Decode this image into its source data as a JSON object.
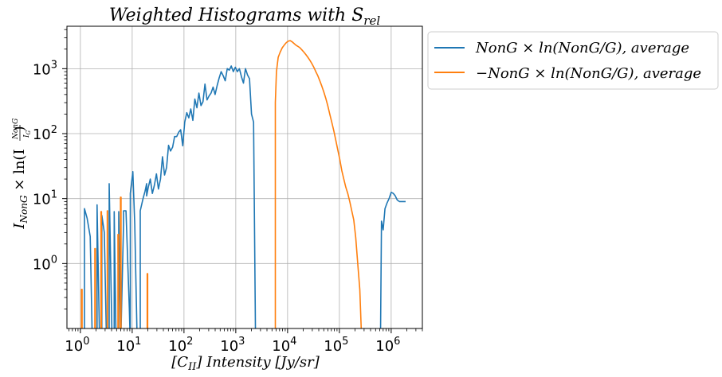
{
  "chart_data": {
    "type": "line",
    "title": "Weighted Histograms with S",
    "title_sub": "rel",
    "xlabel": "[C",
    "xlabel_sub": "II",
    "xlabel_rest": "] Intensity [Jy/sr]",
    "ylabel": "I",
    "ylabel_sub": "NonG",
    "ylabel_rest": " × ln(I",
    "ylabel_frac_num": "NonG",
    "ylabel_frac_den": "I",
    "ylabel_frac_den_sub": "G",
    "ylabel_close": ")",
    "x_scale": "log",
    "y_scale": "log",
    "xlim": [
      0.55,
      4000000
    ],
    "ylim": [
      0.1,
      4500
    ],
    "x_ticks": [
      1,
      10,
      100,
      1000,
      10000,
      100000,
      1000000
    ],
    "x_tick_labels": [
      "10^0",
      "10^1",
      "10^2",
      "10^3",
      "10^4",
      "10^5",
      "10^6"
    ],
    "y_ticks": [
      1,
      10,
      100,
      1000
    ],
    "y_tick_labels": [
      "10^0",
      "10^1",
      "10^2",
      "10^3"
    ],
    "grid": true,
    "legend_position": "outside-right-top",
    "series": [
      {
        "name": "NonG × ln(NonG/G), average",
        "color": "#1f77b4",
        "x": [
          1.2,
          1.2,
          1.35,
          1.55,
          1.7,
          1.7,
          2.1,
          2.1,
          2.35,
          2.35,
          2.6,
          2.6,
          2.9,
          3.2,
          3.2,
          3.6,
          3.6,
          4.1,
          4.1,
          4.5,
          4.5,
          4.9,
          4.9,
          5.5,
          5.5,
          6,
          6,
          6.8,
          6.8,
          7.6,
          8.8,
          9.2,
          9.2,
          10.3,
          11.2,
          12.5,
          13.6,
          14.3,
          14.3,
          16.2,
          17.7,
          19,
          19,
          20.5,
          22.4,
          24.5,
          26.8,
          29.4,
          32.1,
          35.2,
          38.5,
          42.1,
          46,
          50.4,
          55.1,
          60.3,
          66,
          72.2,
          79,
          86.4,
          94.5,
          103.4,
          113.2,
          123.8,
          135.5,
          148.2,
          162.2,
          177.5,
          194.2,
          212.5,
          232.5,
          254.4,
          278.3,
          304.5,
          333.2,
          364.6,
          398.9,
          436.4,
          477.5,
          522.5,
          571.7,
          625.5,
          684.4,
          748.9,
          819.4,
          896.6,
          981,
          1073,
          1174,
          1285,
          1406,
          1538,
          1683,
          1842,
          2015,
          2205,
          2413,
          2640,
          2888,
          3160,
          3458,
          3784,
          4140,
          4530,
          4957,
          5200,
          5200
        ],
        "y": [
          0.1,
          7,
          5,
          2.6,
          0.1,
          0.1,
          0.1,
          8,
          0.1,
          0.1,
          0.1,
          5.5,
          3,
          0.1,
          0.1,
          0.1,
          17,
          0.1,
          0.1,
          0.1,
          6.3,
          0.1,
          0.1,
          0.1,
          6.3,
          0.1,
          0.1,
          4,
          6.5,
          6.5,
          0.2,
          0.1,
          12,
          26,
          4,
          0.1,
          0.1,
          0.1,
          6.5,
          10,
          13,
          17,
          11,
          15,
          20,
          12,
          16,
          24,
          14,
          20,
          44,
          23,
          30,
          66,
          54,
          62,
          90,
          90,
          105,
          115,
          65,
          150,
          210,
          175,
          240,
          160,
          340,
          250,
          420,
          270,
          310,
          580,
          330,
          380,
          420,
          520,
          400,
          550,
          720,
          900,
          780,
          650,
          1000,
          950,
          1100,
          900,
          1050,
          900,
          1000,
          750,
          600,
          1000,
          800,
          700,
          200,
          150,
          0.1,
          0.1,
          0.1,
          0.1,
          0.1,
          0.1,
          0.1,
          0.1,
          0.1,
          0.1,
          0.1
        ],
        "x2": [
          620000,
          650000,
          700000,
          760000,
          830000,
          910000,
          1000000,
          1100000,
          1200000,
          1310000,
          1440000,
          1580000,
          1730000,
          1900000
        ],
        "y2": [
          0.1,
          4.5,
          3.3,
          7,
          8.5,
          10,
          12.5,
          12,
          11,
          9.5,
          9,
          9,
          9,
          9
        ]
      },
      {
        "name": "−NonG × ln(NonG/G), average",
        "color": "#ff7f0e",
        "x": [
          1.05,
          1.05,
          1.08,
          1.08,
          1.9,
          1.9,
          1.95,
          1.95,
          2.5,
          2.5,
          2.55,
          2.55,
          3.3,
          3.3,
          3.35,
          3.35,
          5.3,
          5.3,
          5.45,
          5.45,
          5.95,
          5.95,
          6.1,
          6.1,
          19.5,
          19.5,
          19.9,
          19.9,
          5800,
          5800,
          6100,
          6600,
          7200,
          7900,
          8600,
          9400,
          10200,
          11200,
          12200,
          13300,
          14500,
          15900,
          17300,
          18900,
          20600,
          22500,
          24600,
          26900,
          29400,
          32100,
          35100,
          38300,
          41900,
          45800,
          50000,
          54700,
          59700,
          65300,
          71300,
          78000,
          85200,
          93100,
          101800,
          111200,
          121600,
          132900,
          145200,
          158700,
          173500,
          189600,
          207200,
          226500,
          247600,
          270600,
          295800,
          323400,
          353400,
          386300,
          422300,
          461600,
          504500,
          551500,
          585000,
          585000
        ],
        "y": [
          0.1,
          0.4,
          0.4,
          0.1,
          0.1,
          1.7,
          1.7,
          0.1,
          0.1,
          6.3,
          6.3,
          0.1,
          0.1,
          6.5,
          6.5,
          0.1,
          0.1,
          2.8,
          2.8,
          0.1,
          0.1,
          10.5,
          10.5,
          0.1,
          0.1,
          0.7,
          0.7,
          0.1,
          0.1,
          300,
          900,
          1500,
          1800,
          2100,
          2300,
          2500,
          2650,
          2700,
          2600,
          2450,
          2300,
          2200,
          2100,
          1950,
          1800,
          1650,
          1500,
          1350,
          1200,
          1050,
          900,
          780,
          650,
          540,
          440,
          350,
          270,
          200,
          150,
          110,
          80,
          56,
          40,
          27,
          20,
          15,
          12,
          9,
          6.5,
          4.7,
          2.5,
          1,
          0.4,
          0.1,
          0.1,
          0.1,
          0.1,
          0.1,
          0.1,
          0.1,
          0.1,
          0.1,
          0.1,
          0.1
        ]
      }
    ]
  }
}
